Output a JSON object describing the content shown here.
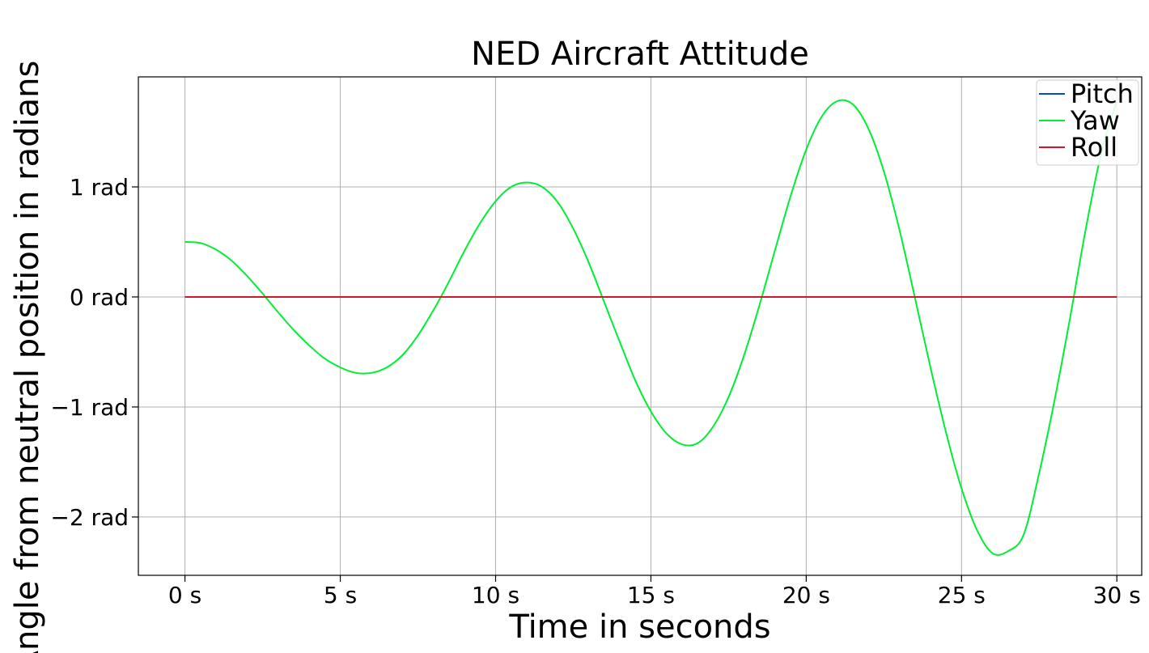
{
  "chart_data": {
    "type": "line",
    "title": "NED Aircraft Attitude",
    "xlabel": "Time in seconds",
    "ylabel": "Angle from neutral position in radians",
    "xlim": [
      -1.5,
      30.8
    ],
    "ylim": [
      -2.53,
      2.0
    ],
    "xticks": [
      {
        "value": 0,
        "label": "0 s"
      },
      {
        "value": 5,
        "label": "5 s"
      },
      {
        "value": 10,
        "label": "10 s"
      },
      {
        "value": 15,
        "label": "15 s"
      },
      {
        "value": 20,
        "label": "20 s"
      },
      {
        "value": 25,
        "label": "25 s"
      },
      {
        "value": 30,
        "label": "30 s"
      }
    ],
    "yticks": [
      {
        "value": 1,
        "label": "1 rad"
      },
      {
        "value": 0,
        "label": "0 rad"
      },
      {
        "value": -1,
        "label": "−1 rad"
      },
      {
        "value": -2,
        "label": "−2 rad"
      }
    ],
    "grid": true,
    "legend_position": "top-right",
    "series": [
      {
        "name": "Pitch",
        "color": "#0a48c8",
        "x": [
          0,
          30
        ],
        "y": [
          0,
          0
        ]
      },
      {
        "name": "Yaw",
        "color": "#00ee33",
        "x": [
          0,
          0.5,
          1,
          1.5,
          2,
          2.5,
          3,
          3.5,
          4,
          4.5,
          5,
          5.5,
          6,
          6.5,
          7,
          7.5,
          8,
          8.5,
          9,
          9.5,
          10,
          10.5,
          11,
          11.5,
          12,
          12.5,
          13,
          13.5,
          14,
          14.5,
          15,
          15.5,
          16,
          16.5,
          17,
          17.5,
          18,
          18.5,
          19,
          19.5,
          20,
          20.5,
          21,
          21.5,
          22,
          22.5,
          23,
          23.5,
          24,
          24.5,
          25,
          25.5,
          26,
          26.5,
          27,
          27.5,
          28,
          28.5,
          29,
          29.5,
          30
        ],
        "y": [
          0.5,
          0.49,
          0.43,
          0.33,
          0.19,
          0.03,
          -0.14,
          -0.3,
          -0.44,
          -0.56,
          -0.64,
          -0.69,
          -0.69,
          -0.64,
          -0.53,
          -0.35,
          -0.12,
          0.14,
          0.42,
          0.67,
          0.87,
          1.0,
          1.04,
          1.0,
          0.86,
          0.62,
          0.31,
          -0.05,
          -0.41,
          -0.76,
          -1.04,
          -1.24,
          -1.34,
          -1.33,
          -1.18,
          -0.91,
          -0.53,
          -0.07,
          0.43,
          0.92,
          1.34,
          1.64,
          1.78,
          1.75,
          1.53,
          1.14,
          0.61,
          -0.01,
          -0.64,
          -1.23,
          -1.74,
          -2.12,
          -2.33,
          -2.31,
          -2.16,
          -1.6,
          -0.93,
          -0.18,
          0.62,
          1.31,
          1.78
        ]
      },
      {
        "name": "Roll",
        "color": "#d4162c",
        "x": [
          0,
          30
        ],
        "y": [
          0,
          0
        ]
      }
    ]
  }
}
